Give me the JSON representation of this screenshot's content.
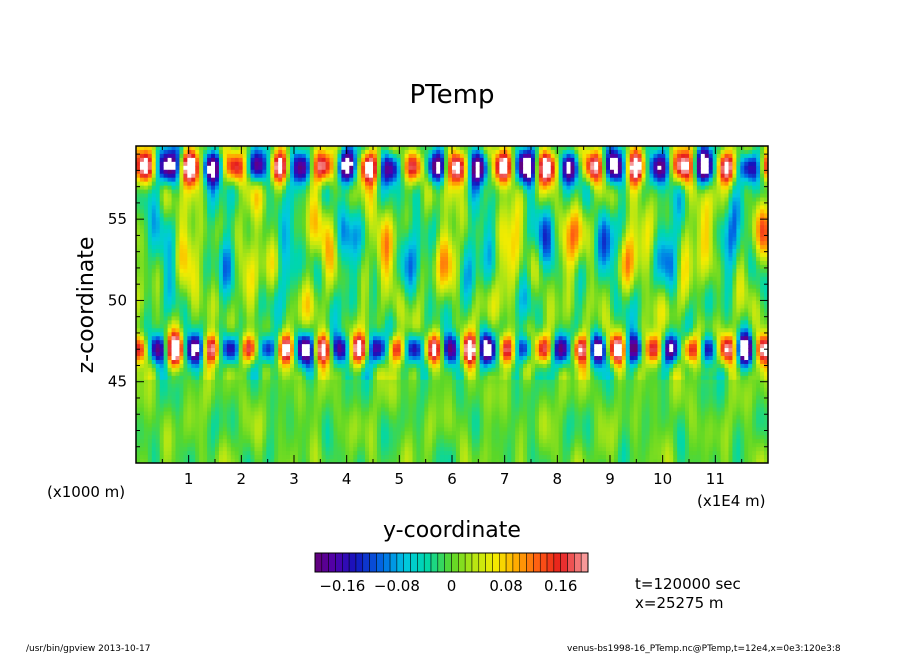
{
  "chart_data": {
    "type": "heatmap",
    "title": "PTemp",
    "xlabel": "y-coordinate",
    "ylabel": "z-coordinate",
    "x_unit_label": "(x1E4 m)",
    "y_unit_label": "(x1000 m)",
    "xlim": [
      0,
      12
    ],
    "ylim": [
      40,
      59.5
    ],
    "x_ticks": [
      "1",
      "2",
      "3",
      "4",
      "5",
      "6",
      "7",
      "8",
      "9",
      "10",
      "11"
    ],
    "y_ticks": [
      "45",
      "50",
      "55"
    ],
    "colorbar": {
      "range": [
        -0.2,
        0.2
      ],
      "tick_labels": [
        "−0.16",
        "−0.08",
        "0",
        "0.08",
        "0.16"
      ],
      "tick_values": [
        -0.16,
        -0.08,
        0,
        0.08,
        0.16
      ]
    },
    "annotations": {
      "time": "t=120000 sec",
      "position": "x=25275 m"
    }
  },
  "footer": {
    "left": "/usr/bin/gpview  2013-10-17",
    "right": "venus-bs1998-16_PTemp.nc@PTemp,t=12e4,x=0e3:120e3:8"
  }
}
